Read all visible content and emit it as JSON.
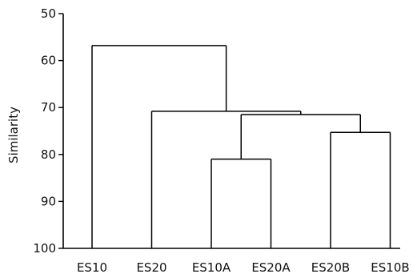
{
  "chart_data": {
    "type": "dendrogram",
    "title": "",
    "ylabel": "Similarity",
    "xlabel": "",
    "ylim": [
      50,
      100
    ],
    "y_inverted": true,
    "yticks": [
      50,
      60,
      70,
      80,
      90,
      100
    ],
    "ytick_labels": [
      "50",
      "60",
      "70",
      "80",
      "90",
      "100"
    ],
    "leaves": [
      "ES10",
      "ES20",
      "ES10A",
      "ES20A",
      "ES20B",
      "ES10B"
    ],
    "merges": [
      {
        "id": "m1",
        "children": [
          "ES10A",
          "ES20A"
        ],
        "similarity": 81
      },
      {
        "id": "m2",
        "children": [
          "ES20B",
          "ES10B"
        ],
        "similarity": 75.3
      },
      {
        "id": "m3",
        "children": [
          "m1",
          "m2"
        ],
        "similarity": 71.5
      },
      {
        "id": "m4",
        "children": [
          "ES20",
          "m3"
        ],
        "similarity": 70.8
      },
      {
        "id": "m5",
        "children": [
          "ES10",
          "m4"
        ],
        "similarity": 56.8
      }
    ],
    "colors": {
      "lines": "#000000",
      "text": "#111111"
    }
  }
}
